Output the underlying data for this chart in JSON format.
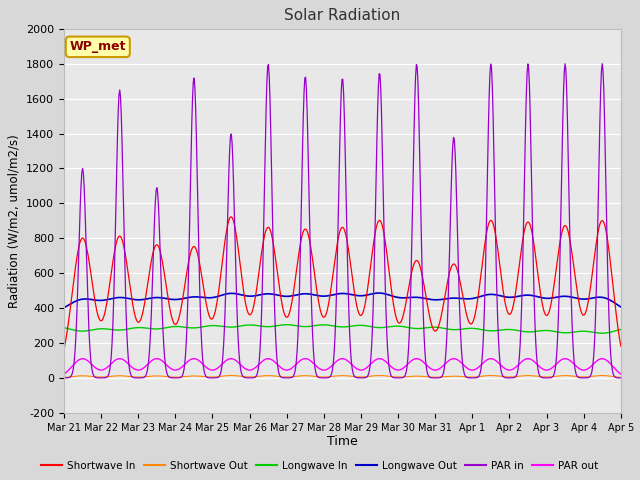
{
  "title": "Solar Radiation",
  "xlabel": "Time",
  "ylabel": "Radiation (W/m2, umol/m2/s)",
  "ylim": [
    -200,
    2000
  ],
  "yticks": [
    -200,
    0,
    200,
    400,
    600,
    800,
    1000,
    1200,
    1400,
    1600,
    1800,
    2000
  ],
  "legend_label": "WP_met",
  "series_names": [
    "Shortwave In",
    "Shortwave Out",
    "Longwave In",
    "Longwave Out",
    "PAR in",
    "PAR out"
  ],
  "series_colors": [
    "#ff0000",
    "#ff8800",
    "#00cc00",
    "#0000cc",
    "#9900cc",
    "#ff00ff"
  ],
  "n_days": 15,
  "day_labels": [
    "Mar 21",
    "Mar 22",
    "Mar 23",
    "Mar 24",
    "Mar 25",
    "Mar 26",
    "Mar 27",
    "Mar 28",
    "Mar 29",
    "Mar 30",
    "Mar 31",
    "Apr 1",
    "Apr 2",
    "Apr 3",
    "Apr 4",
    "Apr 5"
  ],
  "sw_peaks": [
    800,
    810,
    760,
    750,
    920,
    860,
    850,
    860,
    900,
    670,
    650,
    900,
    890,
    870,
    900
  ],
  "par_peaks": [
    1200,
    1650,
    1090,
    1720,
    1400,
    1800,
    1730,
    1720,
    1750,
    1800,
    1380,
    1800,
    1800,
    1800,
    1800
  ],
  "lw_in_base": 310,
  "lw_out_base": 365,
  "par_out_peak": 110,
  "fig_facecolor": "#d8d8d8",
  "ax_facecolor": "#e8e8e8",
  "grid_color": "#ffffff"
}
